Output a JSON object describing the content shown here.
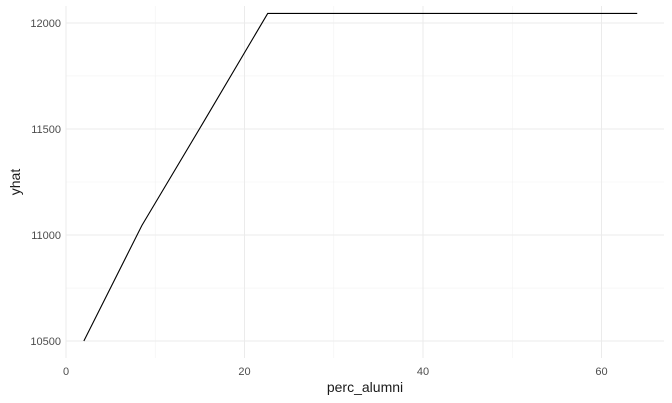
{
  "chart_data": {
    "type": "line",
    "title": "",
    "xlabel": "perc_alumni",
    "ylabel": "yhat",
    "xlim": [
      0,
      67
    ],
    "ylim": [
      10420,
      12080
    ],
    "x_ticks": [
      0,
      20,
      40,
      60
    ],
    "y_ticks": [
      10500,
      11000,
      11500,
      12000
    ],
    "x_tick_labels": [
      "0",
      "20",
      "40",
      "60"
    ],
    "y_tick_labels": [
      "10500",
      "11000",
      "11500",
      "12000"
    ],
    "grid": true,
    "legend": "none",
    "series": [
      {
        "color": "#000000",
        "x": [
          2,
          8.5,
          15.3,
          22.6,
          40,
          64
        ],
        "y": [
          10500,
          11045,
          11525,
          12045,
          12045,
          12045
        ]
      }
    ]
  }
}
